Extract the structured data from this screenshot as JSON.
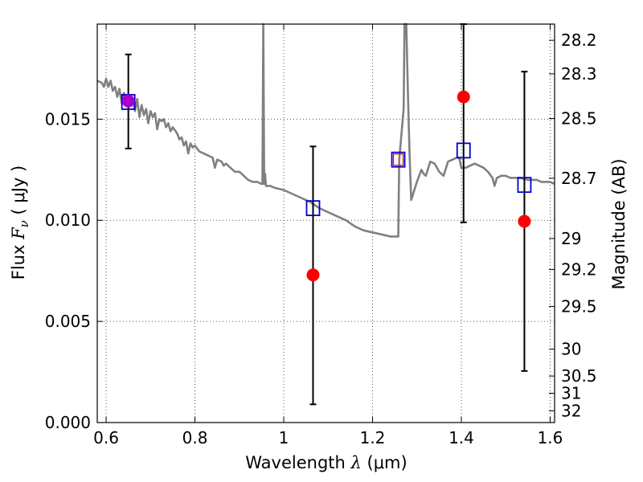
{
  "chart_data": {
    "type": "scatter",
    "xlabel": {
      "prefix": "Wavelength  ",
      "symbol": "λ",
      "unit": " (μm)"
    },
    "ylabel": {
      "prefix": "Flux  ",
      "symbol": "F",
      "subscript": "ν",
      "unit": "  ( μJy )"
    },
    "ylabel_right": "Magnitude (AB)",
    "xlim": [
      0.58,
      1.61
    ],
    "ylim": [
      0.0,
      0.0197
    ],
    "grid": true,
    "x_ticks": [
      {
        "value": 0.6,
        "label": "0.6"
      },
      {
        "value": 0.8,
        "label": "0.8"
      },
      {
        "value": 1.0,
        "label": "1"
      },
      {
        "value": 1.2,
        "label": "1.2"
      },
      {
        "value": 1.4,
        "label": "1.4"
      },
      {
        "value": 1.6,
        "label": "1.6"
      }
    ],
    "y_ticks": [
      {
        "value": 0.0,
        "label": "0.000"
      },
      {
        "value": 0.005,
        "label": "0.005"
      },
      {
        "value": 0.01,
        "label": "0.010"
      },
      {
        "value": 0.015,
        "label": "0.015"
      }
    ],
    "mag_ticks": [
      {
        "value": 0.0189,
        "label": "28.2"
      },
      {
        "value": 0.01724,
        "label": "28.3"
      },
      {
        "value": 0.01503,
        "label": "28.5"
      },
      {
        "value": 0.01208,
        "label": "28.7"
      },
      {
        "value": 0.0091,
        "label": "29"
      },
      {
        "value": 0.00757,
        "label": "29.2"
      },
      {
        "value": 0.00574,
        "label": "29.5"
      },
      {
        "value": 0.00363,
        "label": "30"
      },
      {
        "value": 0.0023,
        "label": "30.5"
      },
      {
        "value": 0.00145,
        "label": "31"
      },
      {
        "value": 0.00058,
        "label": "32"
      }
    ],
    "colors": {
      "model": "#808080",
      "observed": "#ff0000",
      "model_photometry": "#0000cc",
      "overlap": "#aa00cc",
      "errorbar": "#000000",
      "grid": "#555555"
    },
    "series": [
      {
        "kind": "line",
        "points": [
          [
            0.58,
            0.0169
          ],
          [
            0.59,
            0.0168
          ],
          [
            0.595,
            0.0166
          ],
          [
            0.6,
            0.017
          ],
          [
            0.605,
            0.0166
          ],
          [
            0.61,
            0.0169
          ],
          [
            0.615,
            0.0164
          ],
          [
            0.62,
            0.0166
          ],
          [
            0.625,
            0.0161
          ],
          [
            0.63,
            0.0165
          ],
          [
            0.635,
            0.0158
          ],
          [
            0.64,
            0.0163
          ],
          [
            0.645,
            0.0159
          ],
          [
            0.65,
            0.0162
          ],
          [
            0.655,
            0.0158
          ],
          [
            0.66,
            0.0159
          ],
          [
            0.665,
            0.0154
          ],
          [
            0.67,
            0.016
          ],
          [
            0.675,
            0.0151
          ],
          [
            0.68,
            0.0157
          ],
          [
            0.685,
            0.0152
          ],
          [
            0.69,
            0.0155
          ],
          [
            0.695,
            0.0148
          ],
          [
            0.7,
            0.0154
          ],
          [
            0.705,
            0.0151
          ],
          [
            0.71,
            0.0153
          ],
          [
            0.715,
            0.0145
          ],
          [
            0.72,
            0.015
          ],
          [
            0.725,
            0.0149
          ],
          [
            0.73,
            0.015
          ],
          [
            0.735,
            0.0146
          ],
          [
            0.74,
            0.0148
          ],
          [
            0.745,
            0.0144
          ],
          [
            0.75,
            0.0146
          ],
          [
            0.76,
            0.0143
          ],
          [
            0.765,
            0.014
          ],
          [
            0.77,
            0.0141
          ],
          [
            0.775,
            0.0137
          ],
          [
            0.78,
            0.0139
          ],
          [
            0.785,
            0.0133
          ],
          [
            0.79,
            0.0138
          ],
          [
            0.795,
            0.0136
          ],
          [
            0.8,
            0.0137
          ],
          [
            0.81,
            0.0134
          ],
          [
            0.82,
            0.0133
          ],
          [
            0.83,
            0.0132
          ],
          [
            0.84,
            0.0131
          ],
          [
            0.845,
            0.0126
          ],
          [
            0.85,
            0.013
          ],
          [
            0.86,
            0.0129
          ],
          [
            0.865,
            0.0127
          ],
          [
            0.87,
            0.0128
          ],
          [
            0.88,
            0.0126
          ],
          [
            0.89,
            0.0124
          ],
          [
            0.9,
            0.0124
          ],
          [
            0.91,
            0.0122
          ],
          [
            0.92,
            0.012
          ],
          [
            0.93,
            0.0119
          ],
          [
            0.94,
            0.0119
          ],
          [
            0.95,
            0.0118
          ],
          [
            0.952,
            0.0118
          ],
          [
            0.954,
            0.0198
          ],
          [
            0.956,
            0.0118
          ],
          [
            0.958,
            0.0123
          ],
          [
            0.96,
            0.0117
          ],
          [
            0.97,
            0.0117
          ],
          [
            0.98,
            0.0116
          ],
          [
            1.0,
            0.0115
          ],
          [
            1.02,
            0.0113
          ],
          [
            1.04,
            0.0111
          ],
          [
            1.06,
            0.0109
          ],
          [
            1.08,
            0.0106
          ],
          [
            1.1,
            0.0104
          ],
          [
            1.12,
            0.0102
          ],
          [
            1.14,
            0.01
          ],
          [
            1.16,
            0.0097
          ],
          [
            1.18,
            0.0095
          ],
          [
            1.2,
            0.0094
          ],
          [
            1.22,
            0.0093
          ],
          [
            1.24,
            0.0092
          ],
          [
            1.258,
            0.0092
          ],
          [
            1.26,
            0.013
          ],
          [
            1.27,
            0.0155
          ],
          [
            1.272,
            0.0197
          ],
          [
            1.276,
            0.0197
          ],
          [
            1.28,
            0.016
          ],
          [
            1.283,
            0.0135
          ],
          [
            1.287,
            0.011
          ],
          [
            1.3,
            0.0119
          ],
          [
            1.31,
            0.0125
          ],
          [
            1.315,
            0.0123
          ],
          [
            1.32,
            0.0122
          ],
          [
            1.33,
            0.0129
          ],
          [
            1.34,
            0.0128
          ],
          [
            1.35,
            0.0124
          ],
          [
            1.36,
            0.0122
          ],
          [
            1.37,
            0.0129
          ],
          [
            1.38,
            0.013
          ],
          [
            1.39,
            0.0131
          ],
          [
            1.395,
            0.0131
          ],
          [
            1.4,
            0.0126
          ],
          [
            1.41,
            0.0126
          ],
          [
            1.42,
            0.0127
          ],
          [
            1.43,
            0.0128
          ],
          [
            1.44,
            0.0127
          ],
          [
            1.45,
            0.0126
          ],
          [
            1.46,
            0.0124
          ],
          [
            1.47,
            0.0121
          ],
          [
            1.475,
            0.0117
          ],
          [
            1.48,
            0.0121
          ],
          [
            1.49,
            0.0122
          ],
          [
            1.5,
            0.0122
          ],
          [
            1.51,
            0.0121
          ],
          [
            1.52,
            0.0121
          ],
          [
            1.53,
            0.0121
          ],
          [
            1.55,
            0.012
          ],
          [
            1.57,
            0.012
          ],
          [
            1.58,
            0.0119
          ],
          [
            1.6,
            0.0119
          ],
          [
            1.61,
            0.0118
          ]
        ]
      },
      {
        "kind": "observed",
        "points": [
          {
            "x": 0.65,
            "y": 0.0159,
            "err_low": 0.01355,
            "err_high": 0.0182
          },
          {
            "x": 1.066,
            "y": 0.0073,
            "err_low": 0.0009,
            "err_high": 0.01365
          },
          {
            "x": 1.405,
            "y": 0.0161,
            "err_low": 0.0099,
            "err_high": 0.01975
          },
          {
            "x": 1.542,
            "y": 0.00995,
            "err_low": 0.00255,
            "err_high": 0.01735
          }
        ]
      },
      {
        "kind": "model-photometry",
        "points": [
          {
            "x": 0.65,
            "y": 0.01585
          },
          {
            "x": 1.066,
            "y": 0.0106
          },
          {
            "x": 1.258,
            "y": 0.013
          },
          {
            "x": 1.405,
            "y": 0.01345
          },
          {
            "x": 1.542,
            "y": 0.01175
          }
        ]
      },
      {
        "kind": "observed-small",
        "points": [
          {
            "x": 1.258,
            "y": 0.013
          }
        ]
      }
    ]
  }
}
